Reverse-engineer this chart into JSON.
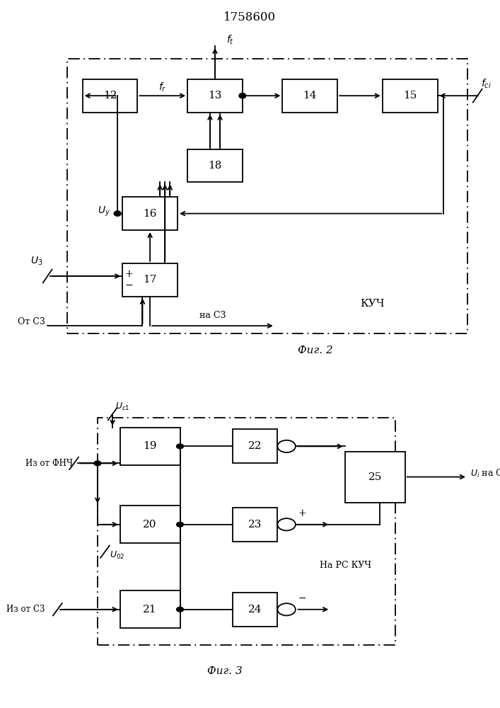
{
  "title": "1758600",
  "fig2_label": "Фиг. 2",
  "fig3_label": "Фиг. 3",
  "bg_color": "#ffffff"
}
